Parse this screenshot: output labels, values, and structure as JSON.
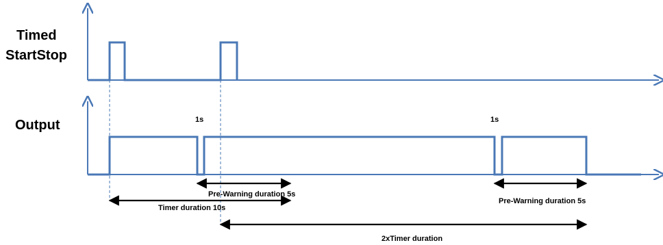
{
  "signals": {
    "timed_startstop": {
      "line1": "Timed",
      "line2": "StartStop"
    },
    "output": {
      "label": "Output"
    }
  },
  "annotations": {
    "gap_1": "1s",
    "gap_2": "1s",
    "pre_warning_1": "Pre-Warning duration 5s",
    "timer_duration": "Timer duration 10s",
    "pre_warning_2": "Pre-Warning duration 5s",
    "two_x_timer": "2xTimer duration"
  },
  "colors": {
    "signal": "#4a78b6",
    "arrow": "#000000",
    "text": "#000000"
  }
}
